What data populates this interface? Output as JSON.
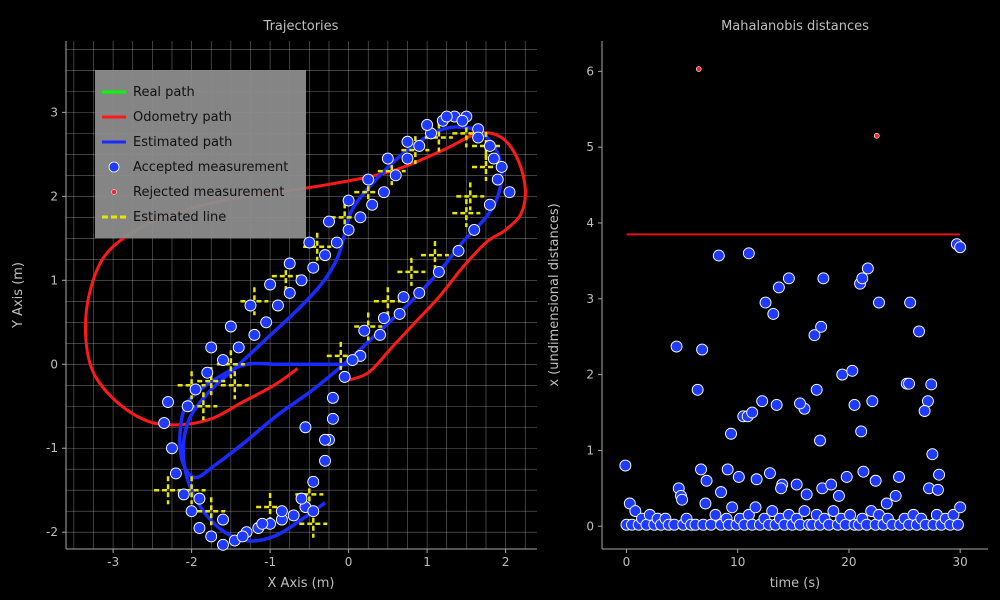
{
  "colors": {
    "background": "#000000",
    "text": "#bfbfbf",
    "axis": "#a8a8a8",
    "grid": "#bdbdbd",
    "real_path": "#00ff00",
    "odometry_path": "#ff1a1a",
    "estimated_path": "#1a2bff",
    "accepted": "#1f3bff",
    "rejected": "#ff2020",
    "estimated_line": "#e6e600",
    "threshold": "#e61010"
  },
  "chart_data": [
    {
      "type": "line",
      "title": "Trajectories",
      "xlabel": "X Axis (m)",
      "ylabel": "Y Axis (m)",
      "xlim": [
        -3.6,
        2.4
      ],
      "ylim": [
        -2.2,
        3.85
      ],
      "xticks": [
        -3,
        -2,
        -1,
        0,
        1,
        2
      ],
      "yticks": [
        -2,
        -1,
        0,
        1,
        2,
        3
      ],
      "grid": true,
      "grid_step": 0.25,
      "legend_position": "top-left",
      "legend": [
        {
          "label": "Real path",
          "kind": "line",
          "color": "#00ff00"
        },
        {
          "label": "Odometry path",
          "kind": "line",
          "color": "#ff1a1a"
        },
        {
          "label": "Estimated path",
          "kind": "line",
          "color": "#1a2bff"
        },
        {
          "label": "Accepted measurement",
          "kind": "marker-large",
          "color": "#1f3bff"
        },
        {
          "label": "Rejected measurement",
          "kind": "marker-small",
          "color": "#ff2020"
        },
        {
          "label": "Estimated line",
          "kind": "dash",
          "color": "#e6e600"
        }
      ],
      "estimated_path": {
        "x": [
          -0.3,
          -0.6,
          -0.95,
          -1.3,
          -1.65,
          -1.95,
          -2.1,
          -2.05,
          -1.8,
          -1.45,
          -1.05,
          -0.65,
          -0.35,
          -0.15,
          -0.05,
          0.05,
          0.35,
          0.75,
          1.2,
          1.6,
          1.85,
          1.95,
          1.9,
          1.75,
          1.45,
          1.15,
          0.8,
          0.4,
          0.0,
          -0.45,
          -0.9,
          -1.35,
          -1.7,
          -1.95,
          -2.1,
          -2.15,
          -2.1,
          -1.95,
          -1.65,
          -1.3,
          -0.9,
          -0.6,
          -0.35,
          -0.2,
          -0.05,
          0.05
        ],
        "y": [
          -1.65,
          -1.85,
          -2.05,
          -2.1,
          -1.95,
          -1.6,
          -1.15,
          -0.7,
          -0.35,
          -0.05,
          0.3,
          0.65,
          0.95,
          1.25,
          1.55,
          1.85,
          2.2,
          2.55,
          2.8,
          2.8,
          2.6,
          2.3,
          2.0,
          1.75,
          1.45,
          1.1,
          0.75,
          0.4,
          0.05,
          -0.3,
          -0.6,
          -0.95,
          -1.2,
          -1.35,
          -1.2,
          -0.9,
          -0.55,
          -0.35,
          -0.15,
          0.0,
          0.0,
          0.0,
          0.0,
          0.0,
          0.0,
          0.0
        ]
      },
      "odometry_path": {
        "x": [
          -0.65,
          -0.95,
          -1.35,
          -1.75,
          -2.15,
          -2.55,
          -2.95,
          -3.25,
          -3.35,
          -3.3,
          -3.1,
          -2.7,
          -2.2,
          -1.6,
          -0.9,
          -0.2,
          0.55,
          1.2,
          1.65,
          1.95,
          2.15,
          2.25,
          2.2,
          2.0,
          1.75,
          1.45,
          1.15,
          0.85,
          0.55,
          0.25,
          -0.05
        ],
        "y": [
          -0.05,
          -0.25,
          -0.45,
          -0.65,
          -0.72,
          -0.68,
          -0.45,
          -0.1,
          0.35,
          0.85,
          1.3,
          1.6,
          1.8,
          1.95,
          2.05,
          2.15,
          2.3,
          2.55,
          2.75,
          2.7,
          2.45,
          2.1,
          1.8,
          1.6,
          1.45,
          1.15,
          0.8,
          0.5,
          0.2,
          -0.1,
          -0.2
        ]
      },
      "accepted_measurements": {
        "x": [
          -2.35,
          -2.3,
          -2.25,
          -2.2,
          -2.1,
          -2.0,
          -1.9,
          -1.75,
          -1.6,
          -1.45,
          -1.3,
          -1.15,
          -1.0,
          -0.85,
          -0.7,
          -0.55,
          -0.45,
          -2.05,
          -1.95,
          -1.8,
          -1.6,
          -1.4,
          -1.2,
          -1.05,
          -0.9,
          -0.75,
          -0.6,
          -0.45,
          -0.3,
          -0.15,
          0.0,
          0.15,
          0.3,
          0.45,
          0.6,
          0.75,
          0.9,
          1.05,
          1.2,
          1.35,
          1.5,
          1.65,
          1.8,
          1.95,
          2.05,
          -1.75,
          -1.5,
          -1.25,
          -1.0,
          -0.75,
          -0.5,
          -0.25,
          0.0,
          0.25,
          0.5,
          0.75,
          1.0,
          1.25,
          1.45,
          1.65,
          1.85,
          1.9,
          1.8,
          1.6,
          1.4,
          1.15,
          0.9,
          0.65,
          0.4,
          0.15,
          -0.05,
          -0.2,
          -0.2,
          -0.25,
          -0.3,
          -0.45,
          -0.6,
          -1.9,
          -1.6,
          -1.35,
          -1.1,
          -0.85,
          -0.55,
          -0.3,
          0.05,
          0.2,
          0.45,
          0.7
        ],
        "y": [
          -0.7,
          -0.45,
          -1.0,
          -1.3,
          -1.55,
          -1.75,
          -1.95,
          -2.05,
          -2.15,
          -2.1,
          -2.0,
          -1.95,
          -1.9,
          -1.85,
          -1.8,
          -1.7,
          -1.75,
          -0.5,
          -0.3,
          -0.1,
          0.05,
          0.2,
          0.35,
          0.5,
          0.7,
          0.85,
          1.0,
          1.15,
          1.3,
          1.45,
          1.6,
          1.75,
          1.9,
          2.05,
          2.25,
          2.45,
          2.6,
          2.75,
          2.9,
          2.95,
          2.95,
          2.8,
          2.6,
          2.35,
          2.05,
          0.2,
          0.45,
          0.7,
          0.95,
          1.2,
          1.45,
          1.7,
          1.95,
          2.2,
          2.45,
          2.65,
          2.85,
          2.95,
          2.9,
          2.7,
          2.45,
          2.2,
          1.9,
          1.6,
          1.35,
          1.1,
          0.85,
          0.6,
          0.35,
          0.1,
          -0.15,
          -0.4,
          -0.65,
          -0.9,
          -1.15,
          -1.4,
          -1.6,
          -1.6,
          -1.85,
          -2.05,
          -1.9,
          -1.75,
          -0.75,
          -0.9,
          0.05,
          0.4,
          0.55,
          0.8
        ]
      },
      "estimated_lines": {
        "x": [
          -2.0,
          -1.75,
          -1.45,
          -1.5,
          -1.85,
          -1.2,
          -0.8,
          -0.4,
          -0.05,
          0.25,
          0.55,
          0.85,
          1.15,
          1.5,
          1.75,
          -0.1,
          0.25,
          0.5,
          0.8,
          1.1,
          1.5,
          1.75,
          1.55,
          -2.3,
          -2.0,
          -1.75,
          -1.0,
          -0.5,
          -0.45
        ],
        "y": [
          -0.25,
          -0.2,
          -0.25,
          0.0,
          -0.5,
          0.75,
          1.05,
          1.4,
          1.75,
          2.05,
          2.3,
          2.55,
          2.7,
          2.75,
          2.6,
          0.1,
          0.45,
          0.75,
          1.1,
          1.3,
          1.8,
          2.35,
          2.0,
          -1.5,
          -1.5,
          -1.75,
          -1.7,
          -1.55,
          -1.9
        ]
      }
    },
    {
      "type": "scatter",
      "title": "Mahalanobis distances",
      "xlabel": "time (s)",
      "ylabel": "x (undimensional distances)",
      "xlim": [
        -2.2,
        32.5
      ],
      "ylim": [
        -0.3,
        6.4
      ],
      "xticks": [
        0,
        10,
        20,
        30
      ],
      "yticks": [
        0,
        1,
        2,
        3,
        4,
        5,
        6
      ],
      "grid": false,
      "threshold": {
        "x": [
          0,
          30
        ],
        "y": 3.85
      },
      "accepted": {
        "x": [
          -0.1,
          0.0,
          0.3,
          0.5,
          0.8,
          1.1,
          1.4,
          1.8,
          2.1,
          2.5,
          2.8,
          3.1,
          3.5,
          3.8,
          4.3,
          4.7,
          4.9,
          5.1,
          5.4,
          5.8,
          6.2,
          6.7,
          6.9,
          7.1,
          7.6,
          8.0,
          8.5,
          9.0,
          9.2,
          9.5,
          9.9,
          10.2,
          10.6,
          11.0,
          11.3,
          11.6,
          12.0,
          12.4,
          12.8,
          13.1,
          13.4,
          13.8,
          14.2,
          14.6,
          14.9,
          15.3,
          15.6,
          16.0,
          16.4,
          16.7,
          17.1,
          17.4,
          17.8,
          18.2,
          18.6,
          19.0,
          19.3,
          19.7,
          20.1,
          20.5,
          20.9,
          21.2,
          21.6,
          22.0,
          22.4,
          22.7,
          23.1,
          23.5,
          23.9,
          24.2,
          24.6,
          25.0,
          25.4,
          25.8,
          26.1,
          26.5,
          26.9,
          27.2,
          27.6,
          27.9,
          28.3,
          28.7,
          29.1,
          29.4,
          29.8,
          30.0,
          4.5,
          6.4,
          6.8,
          8.3,
          9.4,
          10.5,
          11.0,
          12.5,
          13.2,
          13.7,
          14.6,
          16.0,
          16.9,
          17.5,
          17.7,
          19.4,
          20.3,
          21.0,
          21.2,
          21.7,
          22.7,
          25.2,
          25.5,
          26.3,
          27.1,
          27.4,
          29.7,
          30.0,
          10.9,
          11.3,
          12.2,
          13.5,
          15.6,
          17.1,
          17.4,
          20.5,
          21.1,
          22.1,
          25.4,
          26.8,
          9.1,
          11.7,
          12.9,
          14.0,
          15.3,
          17.6,
          19.1,
          19.8,
          21.3,
          22.4,
          24.5,
          27.5,
          28.0,
          28.1,
          5.0,
          7.2,
          8.5,
          10.1,
          13.9,
          16.2,
          18.4,
          23.4
        ],
        "y": [
          0.8,
          0.02,
          0.3,
          0.02,
          0.2,
          0.02,
          0.1,
          0.02,
          0.15,
          0.02,
          0.1,
          0.02,
          0.1,
          0.02,
          0.02,
          0.5,
          0.4,
          0.02,
          0.1,
          0.02,
          0.02,
          0.75,
          0.02,
          0.3,
          0.02,
          0.15,
          0.02,
          0.1,
          0.02,
          0.25,
          0.02,
          0.1,
          0.02,
          0.15,
          0.02,
          0.25,
          0.02,
          0.1,
          0.02,
          0.2,
          0.02,
          0.1,
          0.02,
          0.15,
          0.02,
          0.1,
          0.02,
          0.2,
          0.02,
          0.02,
          0.15,
          0.02,
          0.1,
          0.02,
          0.2,
          0.02,
          0.1,
          0.02,
          0.15,
          0.02,
          0.02,
          0.1,
          0.02,
          0.2,
          0.02,
          0.15,
          0.02,
          0.1,
          0.02,
          0.4,
          0.02,
          0.1,
          0.02,
          0.15,
          0.02,
          0.1,
          0.02,
          0.5,
          0.02,
          0.15,
          0.02,
          0.1,
          0.02,
          0.15,
          0.02,
          0.25,
          2.37,
          1.8,
          2.33,
          3.57,
          1.22,
          1.45,
          3.6,
          2.95,
          2.8,
          3.15,
          3.27,
          1.55,
          2.52,
          2.63,
          3.27,
          2.0,
          2.05,
          3.2,
          3.27,
          3.4,
          2.95,
          1.88,
          2.95,
          2.57,
          1.65,
          1.87,
          3.72,
          3.68,
          1.45,
          1.5,
          1.65,
          1.6,
          1.62,
          1.8,
          1.13,
          1.6,
          1.25,
          1.65,
          1.88,
          1.52,
          0.75,
          0.62,
          0.7,
          0.55,
          0.55,
          0.5,
          0.4,
          0.65,
          0.72,
          0.6,
          0.65,
          0.95,
          0.48,
          0.68,
          0.35,
          0.6,
          0.45,
          0.65,
          0.5,
          0.42,
          0.55,
          0.3
        ]
      },
      "rejected": {
        "x": [
          6.5,
          22.5
        ],
        "y": [
          6.03,
          5.15
        ]
      }
    }
  ]
}
